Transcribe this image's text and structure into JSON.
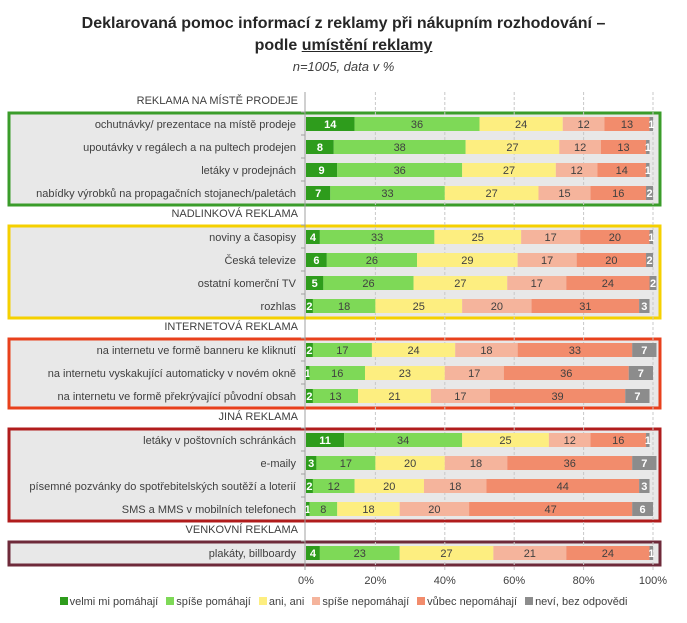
{
  "chart_data": {
    "type": "bar",
    "orientation": "horizontal",
    "stacked": true,
    "title_line1": "Deklarovaná pomoc informací z reklamy při nákupním rozhodování –",
    "title_line2_prefix": "podle ",
    "title_line2_underlined": "umístění reklamy",
    "subtitle": "n=1005, data v %",
    "xlabel": "",
    "ylabel": "",
    "xlim": [
      0,
      100
    ],
    "x_ticks": [
      "0%",
      "20%",
      "40%",
      "60%",
      "80%",
      "100%"
    ],
    "grid": "vertical dashed",
    "legend_position": "bottom",
    "series": [
      {
        "name": "velmi mi pomáhají",
        "color": "#2e9c1c"
      },
      {
        "name": "spíše pomáhají",
        "color": "#7ed957"
      },
      {
        "name": "ani, ani",
        "color": "#fdee80"
      },
      {
        "name": "spíše nepomáhají",
        "color": "#f5b49c"
      },
      {
        "name": "vůbec nepomáhají",
        "color": "#f28c6c"
      },
      {
        "name": "neví, bez odpovědi",
        "color": "#8c8c8c"
      }
    ],
    "groups": [
      {
        "name": "REKLAMA NA MÍSTĚ PRODEJE",
        "border_color": "#3a9c2a",
        "rows": [
          {
            "label": "ochutnávky/ prezentace na místě prodeje",
            "values": [
              14,
              36,
              24,
              12,
              13,
              1
            ]
          },
          {
            "label": "upoutávky v regálech a na pultech prodejen",
            "values": [
              8,
              38,
              27,
              12,
              13,
              1
            ]
          },
          {
            "label": "letáky v prodejnách",
            "values": [
              9,
              36,
              27,
              12,
              14,
              1
            ]
          },
          {
            "label": "nabídky výrobků na propagačních stojanech/paletách",
            "values": [
              7,
              33,
              27,
              15,
              16,
              2
            ]
          }
        ]
      },
      {
        "name": "NADLINKOVÁ REKLAMA",
        "border_color": "#f5d000",
        "rows": [
          {
            "label": "noviny a časopisy",
            "values": [
              4,
              33,
              25,
              17,
              20,
              1
            ]
          },
          {
            "label": "Česká televize",
            "values": [
              6,
              26,
              29,
              17,
              20,
              2
            ]
          },
          {
            "label": "ostatní komerční TV",
            "values": [
              5,
              26,
              27,
              17,
              24,
              2
            ]
          },
          {
            "label": "rozhlas",
            "values": [
              2,
              18,
              25,
              20,
              31,
              3
            ]
          }
        ]
      },
      {
        "name": "INTERNETOVÁ REKLAMA",
        "border_color": "#e8401c",
        "rows": [
          {
            "label": "na internetu ve formě banneru ke kliknutí",
            "values": [
              2,
              17,
              24,
              18,
              33,
              7
            ]
          },
          {
            "label": "na internetu vyskakující automaticky v novém okně",
            "values": [
              1,
              16,
              23,
              17,
              36,
              7
            ]
          },
          {
            "label": "na internetu ve formě překrývající původní obsah",
            "values": [
              2,
              13,
              21,
              17,
              39,
              7
            ]
          }
        ]
      },
      {
        "name": "JINÁ REKLAMA",
        "border_color": "#b01c1c",
        "rows": [
          {
            "label": "letáky v poštovních schránkách",
            "values": [
              11,
              34,
              25,
              12,
              16,
              1
            ]
          },
          {
            "label": "e-maily",
            "values": [
              3,
              17,
              20,
              18,
              36,
              7
            ]
          },
          {
            "label": "písemné pozvánky do spotřebitelských soutěží a loterií",
            "values": [
              2,
              12,
              20,
              18,
              44,
              3
            ]
          },
          {
            "label": "SMS a MMS v mobilních telefonech",
            "values": [
              1,
              8,
              18,
              20,
              47,
              6
            ]
          }
        ]
      },
      {
        "name": "VENKOVNÍ REKLAMA",
        "border_color": "#6e2a3a",
        "rows": [
          {
            "label": "plakáty, billboardy",
            "values": [
              4,
              23,
              27,
              21,
              24,
              1
            ]
          }
        ]
      }
    ]
  }
}
